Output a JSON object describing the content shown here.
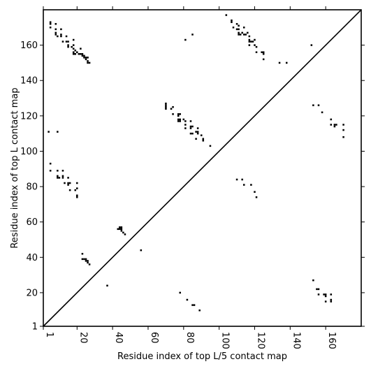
{
  "chart_data": {
    "type": "scatter",
    "xlabel": "Residue index of top L/5 contact map",
    "ylabel": "Residue index of top L contact map",
    "xlim": [
      1,
      180
    ],
    "ylim": [
      1,
      180
    ],
    "xticks": [
      1,
      20,
      40,
      60,
      80,
      100,
      120,
      140,
      160
    ],
    "yticks": [
      1,
      20,
      40,
      60,
      80,
      100,
      120,
      140,
      160
    ],
    "xtick_labels": [
      "1",
      "20",
      "40",
      "60",
      "80",
      "100",
      "120",
      "140",
      "160"
    ],
    "ytick_labels": [
      "1",
      "20",
      "40",
      "60",
      "80",
      "100",
      "120",
      "140",
      "160"
    ],
    "xtick_rotation": -90,
    "diagonal": true,
    "grid": false,
    "marker": "square",
    "marker_color": "#000000",
    "series": [
      {
        "points": [
          [
            5,
            173
          ],
          [
            5,
            172
          ],
          [
            5,
            170
          ],
          [
            8,
            172
          ],
          [
            8,
            169
          ],
          [
            8,
            167
          ],
          [
            8,
            166
          ],
          [
            9,
            165
          ],
          [
            11,
            169
          ],
          [
            11,
            166
          ],
          [
            11,
            165
          ],
          [
            12,
            162
          ],
          [
            14,
            165
          ],
          [
            14,
            162
          ],
          [
            15,
            162
          ],
          [
            15,
            160
          ],
          [
            15,
            159
          ],
          [
            17,
            159
          ],
          [
            18,
            163
          ],
          [
            18,
            160
          ],
          [
            18,
            158
          ],
          [
            18,
            156
          ],
          [
            18,
            155
          ],
          [
            19,
            157
          ],
          [
            19,
            155
          ],
          [
            20,
            156
          ],
          [
            21,
            155
          ],
          [
            22,
            158
          ],
          [
            22,
            155
          ],
          [
            23,
            155
          ],
          [
            23,
            154
          ],
          [
            24,
            154
          ],
          [
            24,
            153
          ],
          [
            25,
            153
          ],
          [
            25,
            152
          ],
          [
            26,
            153
          ],
          [
            26,
            151
          ],
          [
            26,
            150
          ],
          [
            27,
            150
          ],
          [
            104,
            177
          ],
          [
            107,
            174
          ],
          [
            107,
            173
          ],
          [
            108,
            170
          ],
          [
            110,
            172
          ],
          [
            110,
            169
          ],
          [
            111,
            171
          ],
          [
            111,
            169
          ],
          [
            111,
            167
          ],
          [
            111,
            166
          ],
          [
            112,
            166
          ],
          [
            113,
            167
          ],
          [
            114,
            170
          ],
          [
            114,
            166
          ],
          [
            115,
            166
          ],
          [
            116,
            167
          ],
          [
            117,
            165
          ],
          [
            117,
            163
          ],
          [
            117,
            162
          ],
          [
            117,
            160
          ],
          [
            118,
            162
          ],
          [
            119,
            162
          ],
          [
            120,
            163
          ],
          [
            120,
            160
          ],
          [
            121,
            159
          ],
          [
            121,
            156
          ],
          [
            124,
            156
          ],
          [
            125,
            156
          ],
          [
            125,
            155
          ],
          [
            125,
            152
          ],
          [
            134,
            150
          ],
          [
            138,
            150
          ],
          [
            152,
            160
          ],
          [
            81,
            163
          ],
          [
            85,
            166
          ],
          [
            70,
            127
          ],
          [
            70,
            126
          ],
          [
            70,
            125
          ],
          [
            70,
            124
          ],
          [
            73,
            124
          ],
          [
            74,
            125
          ],
          [
            74,
            121
          ],
          [
            77,
            121
          ],
          [
            77,
            120
          ],
          [
            77,
            118
          ],
          [
            77,
            117
          ],
          [
            78,
            121
          ],
          [
            78,
            118
          ],
          [
            78,
            117
          ],
          [
            80,
            118
          ],
          [
            81,
            117
          ],
          [
            81,
            115
          ],
          [
            81,
            113
          ],
          [
            84,
            117
          ],
          [
            84,
            114
          ],
          [
            84,
            113
          ],
          [
            84,
            110
          ],
          [
            85,
            114
          ],
          [
            85,
            110
          ],
          [
            87,
            111
          ],
          [
            87,
            107
          ],
          [
            88,
            113
          ],
          [
            88,
            111
          ],
          [
            88,
            110
          ],
          [
            90,
            109
          ],
          [
            91,
            107
          ],
          [
            91,
            106
          ],
          [
            95,
            103
          ],
          [
            4,
            111
          ],
          [
            9,
            111
          ],
          [
            153,
            126
          ],
          [
            156,
            126
          ],
          [
            158,
            122
          ],
          [
            163,
            118
          ],
          [
            163,
            115
          ],
          [
            165,
            115
          ],
          [
            165,
            114
          ],
          [
            166,
            115
          ],
          [
            170,
            115
          ],
          [
            170,
            112
          ],
          [
            170,
            108
          ],
          [
            5,
            93
          ],
          [
            5,
            89
          ],
          [
            9,
            89
          ],
          [
            9,
            86
          ],
          [
            9,
            85
          ],
          [
            10,
            85
          ],
          [
            12,
            89
          ],
          [
            12,
            86
          ],
          [
            12,
            85
          ],
          [
            13,
            82
          ],
          [
            15,
            85
          ],
          [
            15,
            82
          ],
          [
            15,
            81
          ],
          [
            16,
            82
          ],
          [
            16,
            78
          ],
          [
            19,
            78
          ],
          [
            20,
            82
          ],
          [
            20,
            79
          ],
          [
            20,
            75
          ],
          [
            20,
            74
          ],
          [
            110,
            84
          ],
          [
            113,
            84
          ],
          [
            114,
            81
          ],
          [
            118,
            81
          ],
          [
            120,
            77
          ],
          [
            121,
            74
          ],
          [
            44,
            57
          ],
          [
            44,
            56
          ],
          [
            45,
            57
          ],
          [
            45,
            56
          ],
          [
            45,
            55
          ],
          [
            46,
            54
          ],
          [
            47,
            53
          ],
          [
            43,
            56
          ],
          [
            56,
            44
          ],
          [
            23,
            42
          ],
          [
            23,
            39
          ],
          [
            24,
            39
          ],
          [
            25,
            39
          ],
          [
            25,
            38
          ],
          [
            26,
            37
          ],
          [
            26,
            38
          ],
          [
            27,
            36
          ],
          [
            37,
            24
          ],
          [
            78,
            20
          ],
          [
            82,
            16
          ],
          [
            85,
            13
          ],
          [
            86,
            13
          ],
          [
            89,
            10
          ],
          [
            153,
            27
          ],
          [
            155,
            22
          ],
          [
            156,
            22
          ],
          [
            156,
            19
          ],
          [
            159,
            19
          ],
          [
            160,
            19
          ],
          [
            160,
            18
          ],
          [
            160,
            15
          ],
          [
            163,
            19
          ],
          [
            163,
            16
          ],
          [
            163,
            15
          ]
        ]
      }
    ]
  }
}
